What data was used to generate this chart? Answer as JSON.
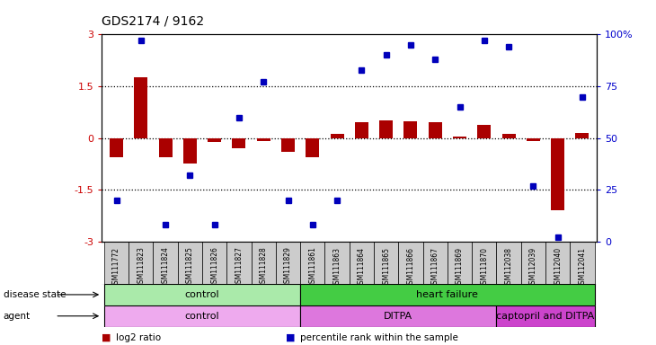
{
  "title": "GDS2174 / 9162",
  "samples": [
    "GSM111772",
    "GSM111823",
    "GSM111824",
    "GSM111825",
    "GSM111826",
    "GSM111827",
    "GSM111828",
    "GSM111829",
    "GSM111861",
    "GSM111863",
    "GSM111864",
    "GSM111865",
    "GSM111866",
    "GSM111867",
    "GSM111869",
    "GSM111870",
    "GSM112038",
    "GSM112039",
    "GSM112040",
    "GSM112041"
  ],
  "log2_ratio": [
    -0.55,
    1.75,
    -0.55,
    -0.75,
    -0.12,
    -0.3,
    -0.08,
    -0.4,
    -0.55,
    0.12,
    0.45,
    0.5,
    0.48,
    0.45,
    0.05,
    0.38,
    0.12,
    -0.08,
    -2.1,
    0.15
  ],
  "percentile_rank": [
    20,
    97,
    8,
    32,
    8,
    60,
    77,
    20,
    8,
    20,
    83,
    90,
    95,
    88,
    65,
    97,
    94,
    27,
    2,
    70
  ],
  "disease_state_groups": [
    {
      "label": "control",
      "start": 0,
      "end": 8,
      "color": "#aaeaaa"
    },
    {
      "label": "heart failure",
      "start": 8,
      "end": 20,
      "color": "#44cc44"
    }
  ],
  "agent_groups": [
    {
      "label": "control",
      "start": 0,
      "end": 8,
      "color": "#eeaaee"
    },
    {
      "label": "DITPA",
      "start": 8,
      "end": 16,
      "color": "#dd77dd"
    },
    {
      "label": "captopril and DITPA",
      "start": 16,
      "end": 20,
      "color": "#cc44cc"
    }
  ],
  "bar_color": "#aa0000",
  "dot_color": "#0000bb",
  "ylim_left": [
    -3,
    3
  ],
  "ylim_right": [
    0,
    100
  ],
  "yticks_left": [
    -3,
    -1.5,
    0,
    1.5,
    3
  ],
  "yticks_right": [
    0,
    25,
    50,
    75,
    100
  ],
  "hlines": [
    -1.5,
    0,
    1.5
  ],
  "background_color": "#ffffff",
  "legend_items": [
    {
      "color": "#aa0000",
      "label": "log2 ratio"
    },
    {
      "color": "#0000bb",
      "label": "percentile rank within the sample"
    }
  ]
}
